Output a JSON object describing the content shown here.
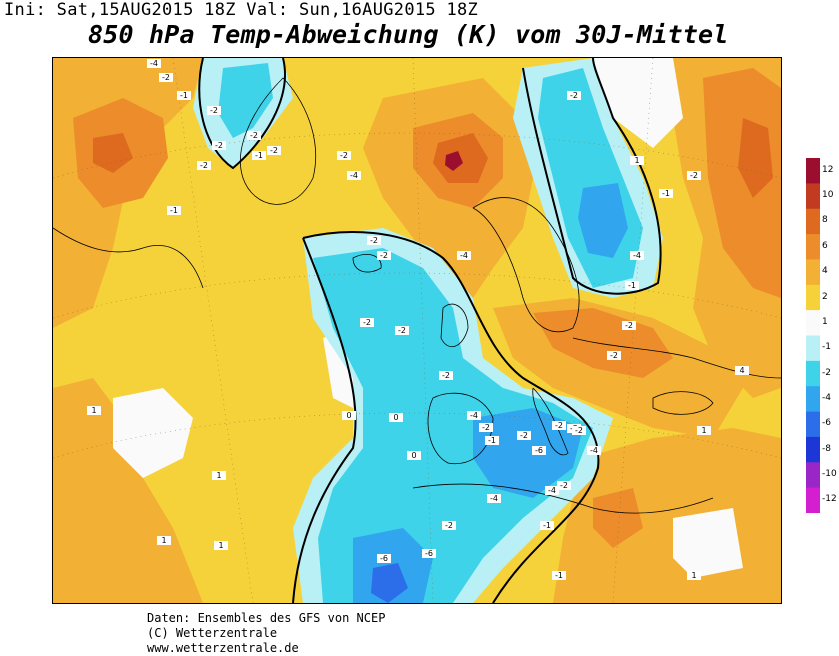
{
  "header": {
    "init_line": "Ini: Sat,15AUG2015 18Z Val: Sun,16AUG2015 18Z",
    "title": "850 hPa Temp-Abweichung (K) vom 30J-Mittel"
  },
  "footer": {
    "line1": "Daten: Ensembles des GFS von NCEP",
    "line2": "(C) Wetterzentrale",
    "line3": "www.wetterzentrale.de"
  },
  "legend": {
    "levels": [
      "12",
      "10",
      "8",
      "6",
      "4",
      "2",
      "1",
      "-1",
      "-2",
      "-4",
      "-6",
      "-8",
      "-10",
      "-12"
    ],
    "colors": {
      "12": "#9c0e2e",
      "10": "#c23a1f",
      "8": "#dd6a1f",
      "6": "#ec8c2b",
      "4": "#f2b034",
      "2": "#f6d23a",
      "1": "#fafafa",
      "-1": "#b8f0f6",
      "-2": "#3fd3ea",
      "-4": "#31a6ee",
      "-6": "#2c6ee9",
      "-8": "#1d36d6",
      "-10": "#9b26c7",
      "-12": "#d31fd0"
    }
  },
  "map": {
    "contour_labels": [
      {
        "t": "-4"
      },
      {
        "t": "-2"
      },
      {
        "t": "-1"
      },
      {
        "t": "-2"
      },
      {
        "t": "-2"
      },
      {
        "t": "-2"
      },
      {
        "t": "-2"
      },
      {
        "t": "-1"
      },
      {
        "t": "-2"
      },
      {
        "t": "-1"
      },
      {
        "t": "-2"
      },
      {
        "t": "-4"
      },
      {
        "t": "-2"
      },
      {
        "t": "-2"
      },
      {
        "t": "-4"
      },
      {
        "t": "-2"
      },
      {
        "t": "-2"
      },
      {
        "t": "-2"
      },
      {
        "t": "-4"
      },
      {
        "t": "-2"
      },
      {
        "t": "-1"
      },
      {
        "t": "-2"
      },
      {
        "t": "-2"
      },
      {
        "t": "-2"
      },
      {
        "t": "-1"
      },
      {
        "t": "-2"
      },
      {
        "t": "-4"
      },
      {
        "t": "-2"
      },
      {
        "t": "-2"
      },
      {
        "t": "-6"
      },
      {
        "t": "-2"
      },
      {
        "t": "-4"
      },
      {
        "t": "-2"
      },
      {
        "t": "-4"
      },
      {
        "t": "-4"
      },
      {
        "t": "-1"
      },
      {
        "t": "-6"
      },
      {
        "t": "-6"
      },
      {
        "t": "0"
      },
      {
        "t": "0"
      },
      {
        "t": "0"
      },
      {
        "t": "1"
      },
      {
        "t": "1"
      },
      {
        "t": "1"
      },
      {
        "t": "1"
      },
      {
        "t": "1"
      },
      {
        "t": "1"
      },
      {
        "t": "1"
      },
      {
        "t": "4"
      },
      {
        "t": "-1"
      },
      {
        "t": "-2"
      },
      {
        "t": "-1"
      },
      {
        "t": "-2"
      }
    ]
  }
}
